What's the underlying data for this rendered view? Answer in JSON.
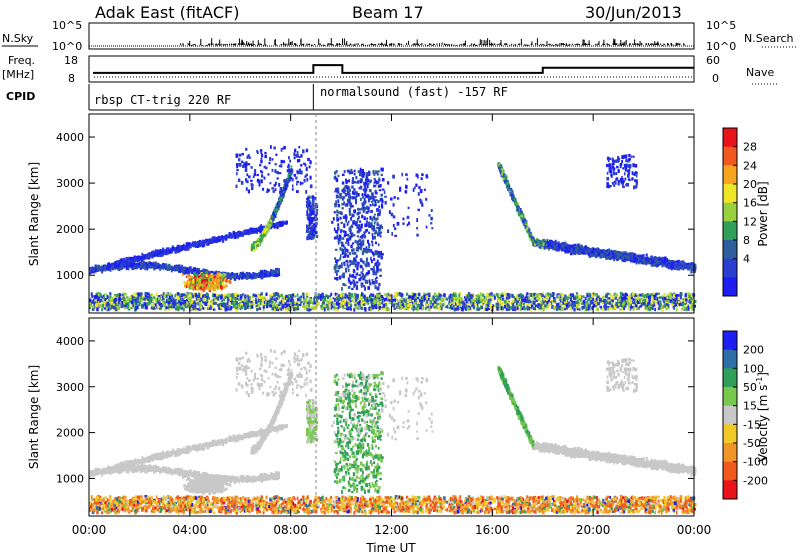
{
  "header": {
    "station": "Adak East (fitACF)",
    "beam": "Beam 17",
    "date": "30/Jun/2013"
  },
  "noise_panel": {
    "left_label": "N.Sky",
    "right_label": "N.Search",
    "left_ticks": [
      "10^5",
      "10^0"
    ],
    "right_ticks": [
      "10^5",
      "10^0"
    ]
  },
  "freq_panel": {
    "left_label": "Freq.",
    "left_unit": "[MHz]",
    "right_label": "Nave",
    "left_ticks": [
      "18",
      "8"
    ],
    "right_ticks": [
      "60",
      "0"
    ],
    "freq_steps": [
      {
        "t0": 0.0,
        "t1": 8.9,
        "value": 11.5
      },
      {
        "t0": 8.9,
        "t1": 10.05,
        "value": 14.5
      },
      {
        "t0": 10.05,
        "t1": 18.0,
        "value": 11.5
      },
      {
        "t0": 18.0,
        "t1": 24.0,
        "value": 13.5
      }
    ]
  },
  "cpid_panel": {
    "label": "CPID",
    "segments": [
      {
        "t0": 0.0,
        "label": "rbsp CT-trig 220 RF"
      },
      {
        "t0": 8.9,
        "label": "normalsound (fast) -157 RF"
      }
    ]
  },
  "chart_data": [
    {
      "type": "heatmap",
      "name": "power",
      "ylabel": "Slant Range [km]",
      "xlabel": "Time UT",
      "xlim": [
        0,
        24
      ],
      "ylim": [
        180,
        4500
      ],
      "y_ticks": [
        "1000",
        "2000",
        "3000",
        "4000"
      ],
      "x_ticks": [
        "00:00",
        "04:00",
        "08:00",
        "12:00",
        "16:00",
        "20:00",
        "00:00"
      ],
      "colorbar": {
        "label": "Power [dB]",
        "ticks": [
          "28",
          "24",
          "20",
          "16",
          "12",
          "8",
          "4"
        ],
        "colors": [
          "#e8141c",
          "#f05a1e",
          "#f5a51e",
          "#f0e628",
          "#98d040",
          "#2f9f5a",
          "#2e5e9c",
          "#2a3ed0",
          "#1e1ef0"
        ]
      },
      "features": [
        {
          "desc": "band",
          "t0": 0.0,
          "r0": 900,
          "t1": 5.0,
          "r1": 1250
        },
        {
          "desc": "band",
          "t0": 0.0,
          "r0": 1250,
          "t1": 7.8,
          "r1": 2000
        },
        {
          "desc": "blob",
          "t": 5.0,
          "r": 800,
          "intensity": 28
        },
        {
          "desc": "blob",
          "t": 7.6,
          "r": 1800,
          "intensity": 20
        },
        {
          "desc": "band",
          "t0": 16.3,
          "r0": 3400,
          "t1": 24.0,
          "r1": 1150
        }
      ]
    },
    {
      "type": "heatmap",
      "name": "velocity",
      "ylabel": "Slant Range [km]",
      "xlabel": "Time UT",
      "xlim": [
        0,
        24
      ],
      "ylim": [
        180,
        4500
      ],
      "y_ticks": [
        "1000",
        "2000",
        "3000",
        "4000"
      ],
      "x_ticks": [
        "00:00",
        "04:00",
        "08:00",
        "12:00",
        "16:00",
        "20:00",
        "00:00"
      ],
      "colorbar": {
        "label": "Velocity [m s",
        "label_sup": "-1",
        "label_end": "]",
        "ticks": [
          "200",
          "100",
          "50",
          "15",
          "-15",
          "-50",
          "-100",
          "-200"
        ],
        "colors": [
          "#1e1ef0",
          "#2e6ea8",
          "#2f9f5a",
          "#78c850",
          "#c8c8c8",
          "#f0c828",
          "#f09628",
          "#f05a1e",
          "#e8141c"
        ]
      }
    }
  ]
}
